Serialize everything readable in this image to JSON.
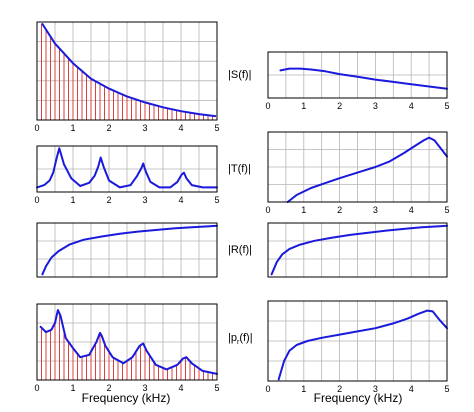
{
  "chart_data": {
    "type": "line",
    "grid": true,
    "xlabel": "Frequency (kHz)",
    "x_ticks": [
      "0",
      "1",
      "2",
      "3",
      "4",
      "5"
    ],
    "row_labels": [
      "|S(f)|",
      "|T(f)|",
      "|R(f)|",
      "|p",
      "r",
      "(f)|"
    ],
    "colors": {
      "curve": "#1a1adc",
      "stems": "#d94040",
      "grid": "#b4b4b4",
      "frame": "#000000"
    },
    "panels": [
      {
        "id": "left-1",
        "type": "stem",
        "xlim": [
          0,
          5
        ],
        "ylim": [
          0,
          1
        ],
        "show_ticks": true,
        "series": [
          {
            "x": [
              0.15,
              0.5,
              1.0,
              1.5,
              2.0,
              2.5,
              3.0,
              3.5,
              4.0,
              4.5,
              4.95
            ],
            "y": [
              0.98,
              0.78,
              0.58,
              0.42,
              0.32,
              0.24,
              0.18,
              0.13,
              0.09,
              0.06,
              0.04
            ]
          }
        ],
        "stem_spacing": 0.125
      },
      {
        "id": "right-1",
        "type": "line",
        "xlim": [
          0,
          5
        ],
        "ylim": [
          0,
          1
        ],
        "show_ticks": true,
        "series": [
          {
            "x": [
              0.35,
              0.6,
              0.9,
              1.2,
              1.6,
              2.0,
              2.5,
              3.0,
              3.5,
              4.0,
              4.5,
              5.0
            ],
            "y": [
              0.6,
              0.64,
              0.64,
              0.62,
              0.58,
              0.52,
              0.46,
              0.4,
              0.35,
              0.3,
              0.25,
              0.2
            ]
          }
        ]
      },
      {
        "id": "left-2",
        "type": "line",
        "xlim": [
          0,
          5
        ],
        "ylim": [
          0,
          1
        ],
        "show_ticks": true,
        "series": [
          {
            "x": [
              0,
              0.2,
              0.35,
              0.45,
              0.55,
              0.62,
              0.75,
              0.95,
              1.2,
              1.45,
              1.6,
              1.7,
              1.77,
              1.85,
              2.0,
              2.3,
              2.6,
              2.78,
              2.9,
              2.95,
              3.02,
              3.15,
              3.4,
              3.7,
              3.9,
              4.02,
              4.08,
              4.15,
              4.3,
              4.6,
              5.0
            ],
            "y": [
              0.1,
              0.15,
              0.25,
              0.42,
              0.75,
              0.95,
              0.6,
              0.3,
              0.13,
              0.2,
              0.35,
              0.55,
              0.75,
              0.55,
              0.25,
              0.1,
              0.15,
              0.35,
              0.52,
              0.62,
              0.45,
              0.22,
              0.1,
              0.1,
              0.22,
              0.38,
              0.42,
              0.3,
              0.15,
              0.1,
              0.1
            ]
          }
        ]
      },
      {
        "id": "right-2",
        "type": "line",
        "xlim": [
          0,
          5
        ],
        "ylim": [
          0,
          1
        ],
        "show_ticks": true,
        "series": [
          {
            "x": [
              0.55,
              0.8,
              1.2,
              1.6,
              2.0,
              2.5,
              3.0,
              3.4,
              3.8,
              4.1,
              4.35,
              4.5,
              4.65,
              4.85,
              5.0
            ],
            "y": [
              0.0,
              0.1,
              0.2,
              0.27,
              0.34,
              0.42,
              0.5,
              0.58,
              0.7,
              0.8,
              0.88,
              0.92,
              0.88,
              0.75,
              0.65
            ]
          }
        ]
      },
      {
        "id": "left-3",
        "type": "line",
        "xlim": [
          0,
          5
        ],
        "ylim": [
          0,
          1
        ],
        "show_ticks": false,
        "series": [
          {
            "x": [
              0.15,
              0.25,
              0.4,
              0.6,
              0.9,
              1.3,
              1.8,
              2.3,
              2.8,
              3.3,
              3.8,
              4.3,
              4.8,
              5.0
            ],
            "y": [
              0.05,
              0.2,
              0.36,
              0.48,
              0.6,
              0.69,
              0.75,
              0.8,
              0.84,
              0.87,
              0.9,
              0.92,
              0.94,
              0.95
            ]
          }
        ]
      },
      {
        "id": "right-3",
        "type": "line",
        "xlim": [
          0,
          5
        ],
        "ylim": [
          0,
          1
        ],
        "show_ticks": false,
        "series": [
          {
            "x": [
              0.1,
              0.25,
              0.4,
              0.6,
              0.9,
              1.3,
              1.8,
              2.3,
              2.8,
              3.3,
              3.8,
              4.3,
              4.8,
              5.0
            ],
            "y": [
              0.05,
              0.28,
              0.42,
              0.52,
              0.6,
              0.67,
              0.73,
              0.78,
              0.82,
              0.86,
              0.89,
              0.92,
              0.94,
              0.95
            ]
          }
        ]
      },
      {
        "id": "left-4",
        "type": "stem",
        "xlim": [
          0,
          5
        ],
        "ylim": [
          0,
          1
        ],
        "show_ticks": true,
        "series": [
          {
            "x": [
              0.1,
              0.25,
              0.4,
              0.5,
              0.58,
              0.65,
              0.8,
              1.0,
              1.2,
              1.45,
              1.65,
              1.75,
              1.8,
              1.9,
              2.1,
              2.4,
              2.65,
              2.85,
              2.95,
              3.05,
              3.3,
              3.6,
              3.9,
              4.05,
              4.15,
              4.3,
              4.6,
              5.0
            ],
            "y": [
              0.7,
              0.63,
              0.66,
              0.75,
              0.92,
              0.85,
              0.55,
              0.42,
              0.3,
              0.33,
              0.5,
              0.62,
              0.58,
              0.45,
              0.3,
              0.22,
              0.3,
              0.45,
              0.48,
              0.38,
              0.2,
              0.14,
              0.2,
              0.28,
              0.3,
              0.22,
              0.12,
              0.08
            ]
          }
        ],
        "stem_spacing": 0.125
      },
      {
        "id": "right-4",
        "type": "line",
        "xlim": [
          0,
          5
        ],
        "ylim": [
          0,
          1
        ],
        "show_ticks": true,
        "series": [
          {
            "x": [
              0.3,
              0.45,
              0.6,
              0.8,
              1.1,
              1.5,
              2.0,
              2.5,
              3.0,
              3.5,
              3.9,
              4.2,
              4.45,
              4.6,
              4.8,
              5.0
            ],
            "y": [
              0.02,
              0.25,
              0.38,
              0.45,
              0.5,
              0.54,
              0.58,
              0.62,
              0.66,
              0.72,
              0.78,
              0.84,
              0.88,
              0.87,
              0.76,
              0.66
            ]
          }
        ]
      }
    ]
  }
}
